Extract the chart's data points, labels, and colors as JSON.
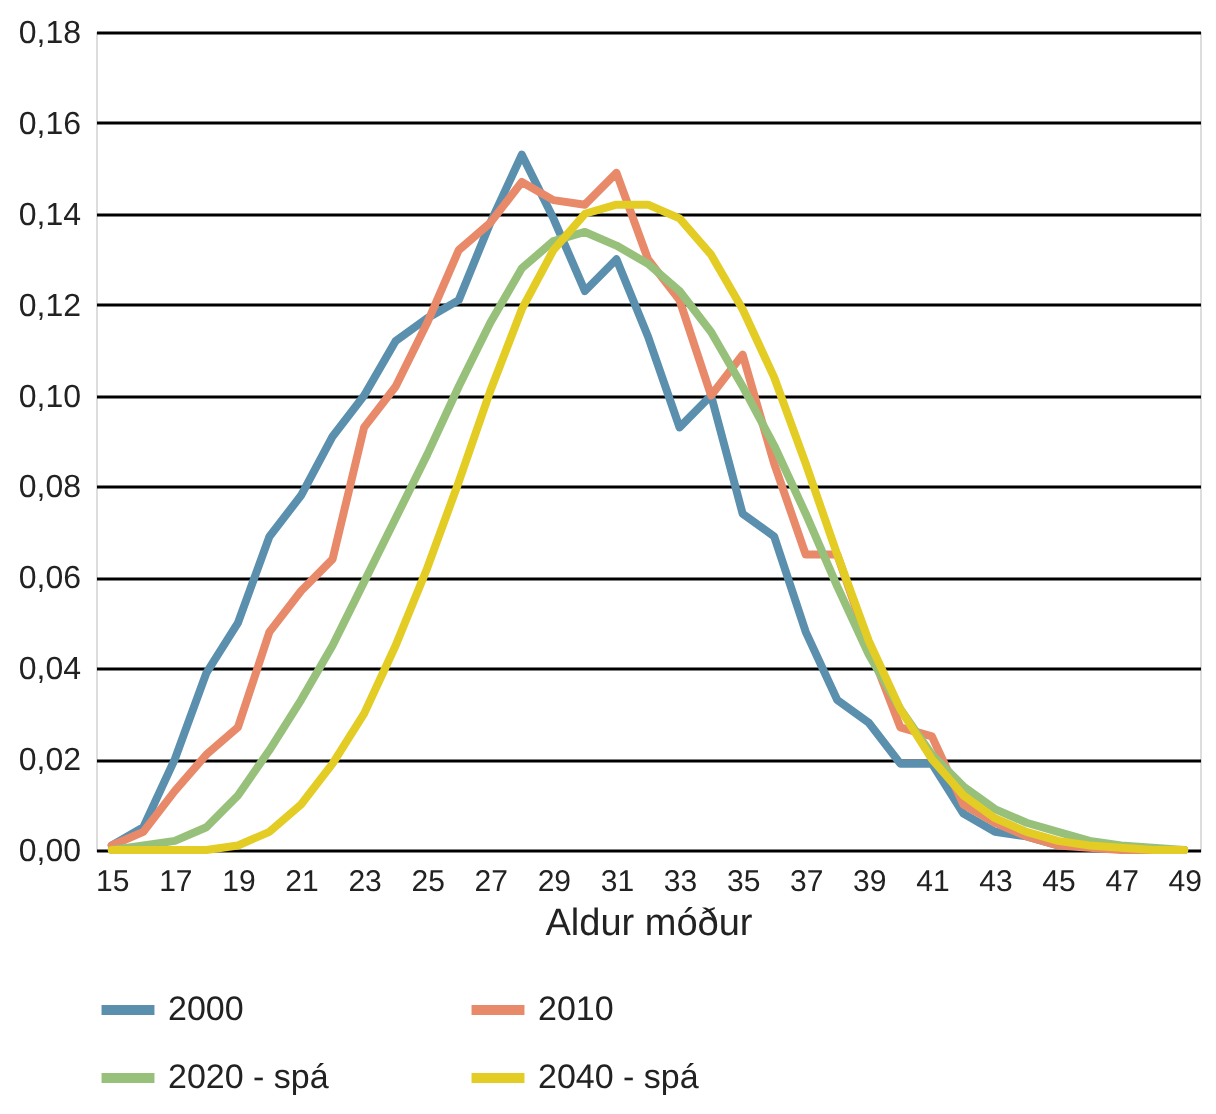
{
  "chart_data": {
    "type": "line",
    "xlabel": "Aldur móður",
    "x": [
      15,
      16,
      17,
      18,
      19,
      20,
      21,
      22,
      23,
      24,
      25,
      26,
      27,
      28,
      29,
      30,
      31,
      32,
      33,
      34,
      35,
      36,
      37,
      38,
      39,
      40,
      41,
      42,
      43,
      44,
      45,
      46,
      47,
      48,
      49
    ],
    "series": [
      {
        "name": "2000",
        "color": "#5b8fae",
        "values": [
          0.001,
          0.005,
          0.02,
          0.039,
          0.05,
          0.069,
          0.078,
          0.091,
          0.1,
          0.112,
          0.117,
          0.121,
          0.138,
          0.153,
          0.139,
          0.123,
          0.13,
          0.113,
          0.093,
          0.1,
          0.074,
          0.069,
          0.048,
          0.033,
          0.028,
          0.019,
          0.019,
          0.008,
          0.004,
          0.003,
          0.001,
          null,
          null,
          null,
          null
        ]
      },
      {
        "name": "2010",
        "color": "#e8896a",
        "values": [
          0.001,
          0.004,
          0.013,
          0.021,
          0.027,
          0.048,
          0.057,
          0.064,
          0.093,
          0.102,
          0.116,
          0.132,
          0.138,
          0.147,
          0.143,
          0.142,
          0.149,
          0.13,
          0.121,
          0.1,
          0.109,
          0.085,
          0.065,
          0.065,
          0.045,
          0.027,
          0.025,
          0.01,
          0.006,
          0.003,
          0.001,
          0.0005,
          0,
          0,
          0
        ]
      },
      {
        "name": "2020 - spá",
        "color": "#97c07a",
        "values": [
          0,
          0.001,
          0.002,
          0.005,
          0.012,
          0.022,
          0.033,
          0.045,
          0.059,
          0.073,
          0.087,
          0.102,
          0.116,
          0.128,
          0.134,
          0.136,
          0.133,
          0.129,
          0.123,
          0.114,
          0.102,
          0.089,
          0.074,
          0.058,
          0.043,
          0.031,
          0.021,
          0.014,
          0.009,
          0.006,
          0.004,
          0.002,
          0.001,
          0.0005,
          0
        ]
      },
      {
        "name": "2040 - spá",
        "color": "#e3cc23",
        "values": [
          0,
          0,
          0,
          0,
          0.001,
          0.004,
          0.01,
          0.019,
          0.03,
          0.045,
          0.062,
          0.081,
          0.101,
          0.119,
          0.132,
          0.14,
          0.142,
          0.142,
          0.139,
          0.131,
          0.119,
          0.104,
          0.085,
          0.065,
          0.046,
          0.031,
          0.02,
          0.012,
          0.007,
          0.004,
          0.002,
          0.001,
          0.0005,
          0,
          0
        ]
      }
    ],
    "xlim": [
      14.5,
      49.5
    ],
    "xticks": [
      15,
      17,
      19,
      21,
      23,
      25,
      27,
      29,
      31,
      33,
      35,
      37,
      39,
      41,
      43,
      45,
      47,
      49
    ],
    "ylim": [
      0,
      0.18
    ],
    "yticks": [
      {
        "value": 0,
        "label": "0,00"
      },
      {
        "value": 0.02,
        "label": "0,02"
      },
      {
        "value": 0.04,
        "label": "0,04"
      },
      {
        "value": 0.06,
        "label": "0,06"
      },
      {
        "value": 0.08,
        "label": "0,08"
      },
      {
        "value": 0.1,
        "label": "0,10"
      },
      {
        "value": 0.12,
        "label": "0,12"
      },
      {
        "value": 0.14,
        "label": "0,14"
      },
      {
        "value": 0.16,
        "label": "0,16"
      },
      {
        "value": 0.18,
        "label": "0,18"
      }
    ],
    "grid": "y",
    "legend": "bottom",
    "marker": "none",
    "line_style": "solid"
  }
}
